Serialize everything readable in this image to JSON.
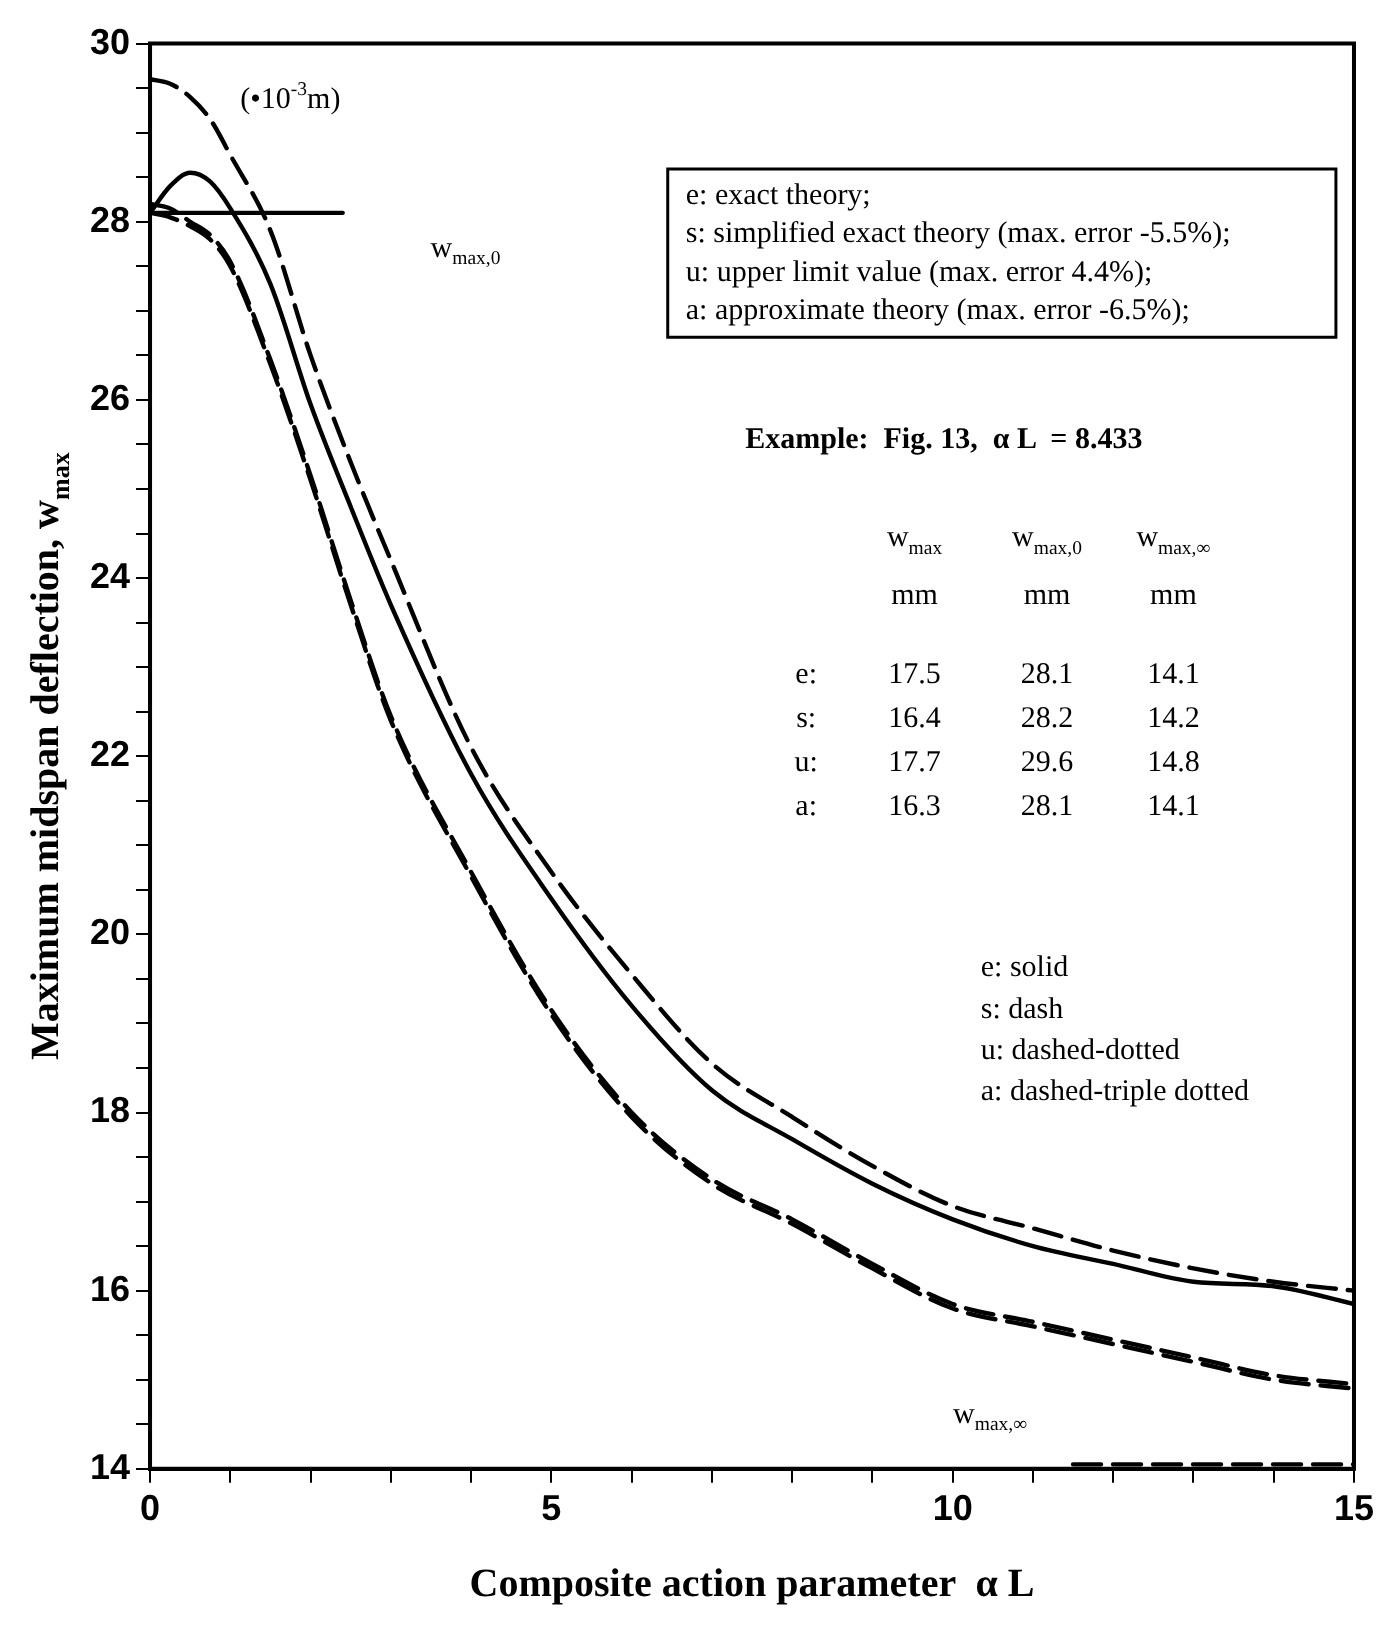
{
  "chart_data": {
    "type": "line",
    "xlabel": "Composite action parameter  α L",
    "ylabel": "Maximum midspan deflection, w$_{max}$",
    "x": [
      0,
      0.25,
      0.5,
      0.75,
      1,
      1.5,
      2,
      2.5,
      3,
      4,
      5,
      6,
      7,
      8,
      9,
      10,
      11,
      12,
      13,
      14,
      15
    ],
    "series": [
      {
        "color": "#000000",
        "line_style": "solid",
        "values": [
          28.1,
          28.4,
          28.55,
          28.45,
          28.15,
          27.3,
          25.95,
          24.8,
          23.7,
          21.8,
          20.4,
          19.2,
          18.25,
          17.7,
          17.2,
          16.8,
          16.5,
          16.3,
          16.1,
          16.05,
          15.85
        ]
      },
      {
        "color": "#000000",
        "line_style": "dashed",
        "values": [
          28.2,
          28.15,
          28.0,
          27.85,
          27.55,
          26.45,
          25.15,
          23.75,
          22.45,
          20.7,
          19.15,
          18.0,
          17.25,
          16.8,
          16.3,
          15.85,
          15.65,
          15.45,
          15.25,
          15.05,
          14.95
        ]
      },
      {
        "color": "#000000",
        "line_style": "dashed",
        "values": [
          29.6,
          29.55,
          29.4,
          29.15,
          28.75,
          27.9,
          26.5,
          25.3,
          24.2,
          22.1,
          20.7,
          19.55,
          18.55,
          17.95,
          17.4,
          16.95,
          16.7,
          16.45,
          16.25,
          16.1,
          16.0
        ]
      },
      {
        "color": "#000000",
        "line_style": "dashed",
        "values": [
          28.1,
          28.05,
          27.95,
          27.8,
          27.5,
          26.4,
          25.1,
          23.7,
          22.4,
          20.65,
          19.1,
          17.95,
          17.2,
          16.75,
          16.25,
          15.8,
          15.6,
          15.4,
          15.2,
          15.0,
          14.9
        ]
      },
      {
        "color": "#000000",
        "line_style": "solid",
        "x": [
          0,
          2.4
        ],
        "values": [
          28.1,
          28.1
        ]
      },
      {
        "color": "#000000",
        "line_style": "dashed",
        "x": [
          11.5,
          15
        ],
        "values": [
          14.05,
          14.05
        ]
      }
    ],
    "xlim": [
      0,
      15
    ],
    "xticks": [
      0,
      {
        "value": 1,
        "label": null
      },
      {
        "value": 2,
        "label": null
      },
      {
        "value": 3,
        "label": null
      },
      {
        "value": 4,
        "label": null
      },
      5,
      {
        "value": 6,
        "label": null
      },
      {
        "value": 7,
        "label": null
      },
      {
        "value": 8,
        "label": null
      },
      {
        "value": 9,
        "label": null
      },
      10,
      {
        "value": 11,
        "label": null
      },
      {
        "value": 12,
        "label": null
      },
      {
        "value": 13,
        "label": null
      },
      {
        "value": 14,
        "label": null
      },
      15
    ],
    "ylim": [
      14,
      30
    ],
    "yticks": [
      14,
      {
        "value": 14.5,
        "label": null
      },
      {
        "value": 15,
        "label": null
      },
      {
        "value": 15.5,
        "label": null
      },
      16,
      {
        "value": 16.5,
        "label": null
      },
      {
        "value": 17,
        "label": null
      },
      {
        "value": 17.5,
        "label": null
      },
      18,
      {
        "value": 18.5,
        "label": null
      },
      {
        "value": 19,
        "label": null
      },
      {
        "value": 19.5,
        "label": null
      },
      20,
      {
        "value": 20.5,
        "label": null
      },
      {
        "value": 21,
        "label": null
      },
      {
        "value": 21.5,
        "label": null
      },
      22,
      {
        "value": 22.5,
        "label": null
      },
      {
        "value": 23,
        "label": null
      },
      {
        "value": 23.5,
        "label": null
      },
      24,
      {
        "value": 24.5,
        "label": null
      },
      {
        "value": 25,
        "label": null
      },
      {
        "value": 25.5,
        "label": null
      },
      26,
      {
        "value": 26.5,
        "label": null
      },
      {
        "value": 27,
        "label": null
      },
      {
        "value": 27.5,
        "label": null
      },
      28,
      {
        "value": 28.5,
        "label": null
      },
      {
        "value": 29,
        "label": null
      },
      {
        "value": 29.5,
        "label": null
      },
      30
    ],
    "grid": false,
    "legend": false,
    "marker": "none",
    "annotations": [
      "(•10$^{-3}$m)",
      "e: exact theory;",
      "s: simplified exact theory (max. error -5.5%);",
      "u: upper limit value (max. error 4.4%);",
      "a: approximate theory (max. error -6.5%);",
      "Example:  Fig. 13,  α L  = 8.433",
      "w$_{max}$\tw$_{max,0}$\tw$_{max,∞}$",
      "mm\tmm\tmm",
      "e:\t17.5\t28.1\t14.1",
      "s:\t16.4\t28.2\t14.2",
      "u:\t17.7\t29.6\t14.8",
      "a:\t16.3\t28.1\t14.1",
      "e: solid",
      "s: dash",
      "u: dashed-dotted",
      "a: dashed-triple dotted",
      "w$_{max,0}$",
      "w$_{max,∞}$"
    ]
  }
}
